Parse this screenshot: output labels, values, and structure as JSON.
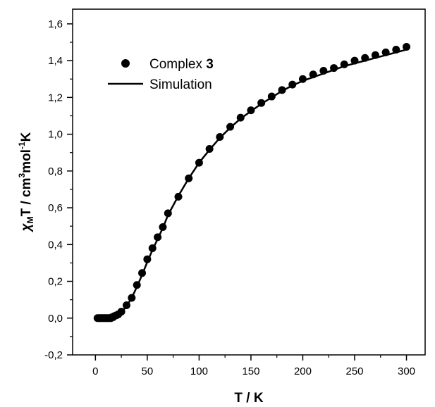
{
  "chart_data": {
    "type": "scatter",
    "xlabel": "T / K",
    "ylabel": {
      "chi": "χ",
      "sub": "M",
      "text1": "T / cm",
      "sup1": "3",
      "text2": "mol",
      "sup2": "-1",
      "text3": "K"
    },
    "xlim": [
      -22,
      318
    ],
    "ylim": [
      -0.2,
      1.68
    ],
    "xticks": [
      0,
      50,
      100,
      150,
      200,
      250,
      300
    ],
    "yticks": [
      -0.2,
      0.0,
      0.2,
      0.4,
      0.6,
      0.8,
      1.0,
      1.2,
      1.4,
      1.6
    ],
    "xtick_labels": [
      "0",
      "50",
      "100",
      "150",
      "200",
      "250",
      "300"
    ],
    "ytick_labels": [
      "-0,2",
      "0,0",
      "0,2",
      "0,4",
      "0,6",
      "0,8",
      "1,0",
      "1,2",
      "1,4",
      "1,6"
    ],
    "grid": false,
    "legend_placement": "top-left",
    "legend": {
      "points_label": "Complex ",
      "points_label_bold": "3",
      "line_label": "Simulation"
    },
    "series": [
      {
        "name": "Complex 3",
        "style": "points",
        "color": "#000000",
        "x": [
          2,
          3,
          4,
          5,
          6,
          7,
          8,
          9,
          10,
          11,
          12,
          13,
          14,
          15,
          16,
          17,
          18,
          20,
          22,
          25,
          30,
          35,
          40,
          45,
          50,
          55,
          60,
          65,
          70,
          80,
          90,
          100,
          110,
          120,
          130,
          140,
          150,
          160,
          170,
          180,
          190,
          200,
          210,
          220,
          230,
          240,
          250,
          260,
          270,
          280,
          290,
          300
        ],
        "y": [
          0.0,
          0.0,
          0.0,
          0.0,
          0.0,
          0.0,
          0.0,
          0.0,
          0.0,
          0.0,
          0.0,
          0.0,
          0.0,
          0.0,
          0.005,
          0.005,
          0.01,
          0.015,
          0.02,
          0.035,
          0.07,
          0.11,
          0.18,
          0.245,
          0.32,
          0.38,
          0.44,
          0.495,
          0.57,
          0.66,
          0.76,
          0.845,
          0.92,
          0.985,
          1.04,
          1.09,
          1.13,
          1.17,
          1.205,
          1.24,
          1.27,
          1.3,
          1.325,
          1.345,
          1.36,
          1.38,
          1.4,
          1.415,
          1.43,
          1.445,
          1.46,
          1.475
        ]
      },
      {
        "name": "Simulation",
        "style": "line",
        "color": "#000000",
        "x": [
          2,
          5,
          10,
          15,
          20,
          25,
          30,
          35,
          40,
          45,
          50,
          55,
          60,
          65,
          70,
          80,
          90,
          100,
          110,
          120,
          130,
          140,
          150,
          160,
          170,
          180,
          190,
          200,
          210,
          220,
          230,
          240,
          250,
          260,
          270,
          280,
          290,
          300
        ],
        "y": [
          0.0,
          0.0,
          0.0,
          0.002,
          0.012,
          0.03,
          0.065,
          0.11,
          0.17,
          0.235,
          0.305,
          0.37,
          0.43,
          0.49,
          0.56,
          0.665,
          0.76,
          0.845,
          0.915,
          0.98,
          1.035,
          1.085,
          1.125,
          1.165,
          1.2,
          1.235,
          1.265,
          1.29,
          1.31,
          1.33,
          1.35,
          1.37,
          1.385,
          1.4,
          1.415,
          1.43,
          1.445,
          1.46
        ]
      }
    ]
  }
}
